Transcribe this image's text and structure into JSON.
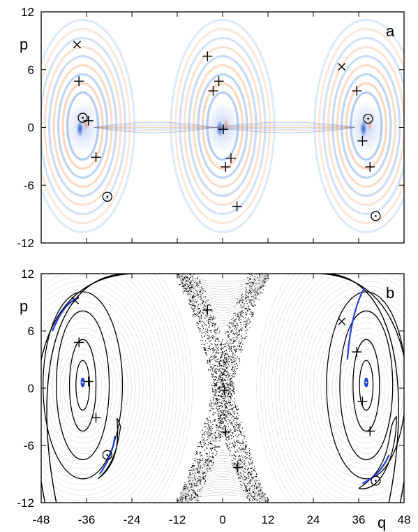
{
  "chart_data": [
    {
      "panel": "a",
      "type": "scatter",
      "title": "",
      "panel_label": "a",
      "xlabel": "",
      "ylabel": "p",
      "xlim": [
        -48,
        48
      ],
      "ylim": [
        -12,
        12
      ],
      "y_ticks": [
        "12",
        "6",
        "0",
        "-6",
        "-12"
      ],
      "y_tick_values": [
        12,
        6,
        0,
        -6,
        -12
      ],
      "x_tick_values": [
        -48,
        -36,
        -24,
        -12,
        0,
        12,
        24,
        36,
        48
      ],
      "grid": false,
      "background": "Wigner-function density (blue negative / orange positive) with three elliptical lobes centered near q = -36, 0, 36",
      "markers": {
        "plus": [
          [
            -38,
            4.8
          ],
          [
            -35.5,
            0.7
          ],
          [
            -33.5,
            -3.1
          ],
          [
            -4,
            7.4
          ],
          [
            -2.5,
            3.8
          ],
          [
            -1,
            4.8
          ],
          [
            0.2,
            -0.2
          ],
          [
            0.8,
            -4.1
          ],
          [
            2.2,
            -3.2
          ],
          [
            3.8,
            -8.2
          ],
          [
            35.5,
            3.8
          ],
          [
            37,
            -1.4
          ],
          [
            39,
            -4.1
          ]
        ],
        "cross": [
          [
            -38.5,
            8.6
          ],
          [
            31.5,
            6.3
          ]
        ],
        "circle": [
          [
            -37,
            1.0
          ],
          [
            -30.5,
            -7.2
          ],
          [
            38.5,
            0.9
          ],
          [
            40.5,
            -9.2
          ]
        ]
      }
    },
    {
      "panel": "b",
      "type": "scatter",
      "title": "",
      "panel_label": "b",
      "xlabel": "q",
      "ylabel": "p",
      "xlim": [
        -48,
        48
      ],
      "ylim": [
        -12,
        12
      ],
      "x_ticks": [
        "-48",
        "-36",
        "-24",
        "-12",
        "0",
        "12",
        "24",
        "36",
        "48"
      ],
      "x_tick_values": [
        -48,
        -36,
        -24,
        -12,
        0,
        12,
        24,
        36,
        48
      ],
      "y_ticks": [
        "12",
        "6",
        "0",
        "-6",
        "-12"
      ],
      "y_tick_values": [
        12,
        6,
        0,
        -6,
        -12
      ],
      "grid": false,
      "background": "Poincaré section: regular invariant curves (black) around islands, chaotic sea (dense dots) along an X-shaped separatrix at q = 0, with blue-highlighted Husimi density on selected orbits",
      "markers": {
        "plus": [
          [
            -38,
            4.8
          ],
          [
            -35.5,
            0.7
          ],
          [
            -33.5,
            -3.1
          ],
          [
            0.5,
            -0.2
          ],
          [
            0.8,
            -4.6
          ],
          [
            4,
            -8.3
          ],
          [
            -4,
            8.2
          ],
          [
            35.5,
            3.8
          ],
          [
            37,
            -1.4
          ],
          [
            39,
            -4.5
          ]
        ],
        "cross": [
          [
            -39,
            9.2
          ],
          [
            31.5,
            7.0
          ]
        ],
        "circle": [
          [
            -30.5,
            -7.0
          ],
          [
            40.5,
            -9.7
          ]
        ],
        "island_centers": [
          [
            -37,
            0.6
          ],
          [
            38.5,
            0.6
          ]
        ]
      }
    }
  ],
  "colors": {
    "axis": "#000000",
    "negative": "#2a6fd6",
    "positive": "#e8823a",
    "orbit": "#000000",
    "chaos": "#000000",
    "highlight": "#1f3fd8",
    "background_curves": "#bfbfbf"
  }
}
